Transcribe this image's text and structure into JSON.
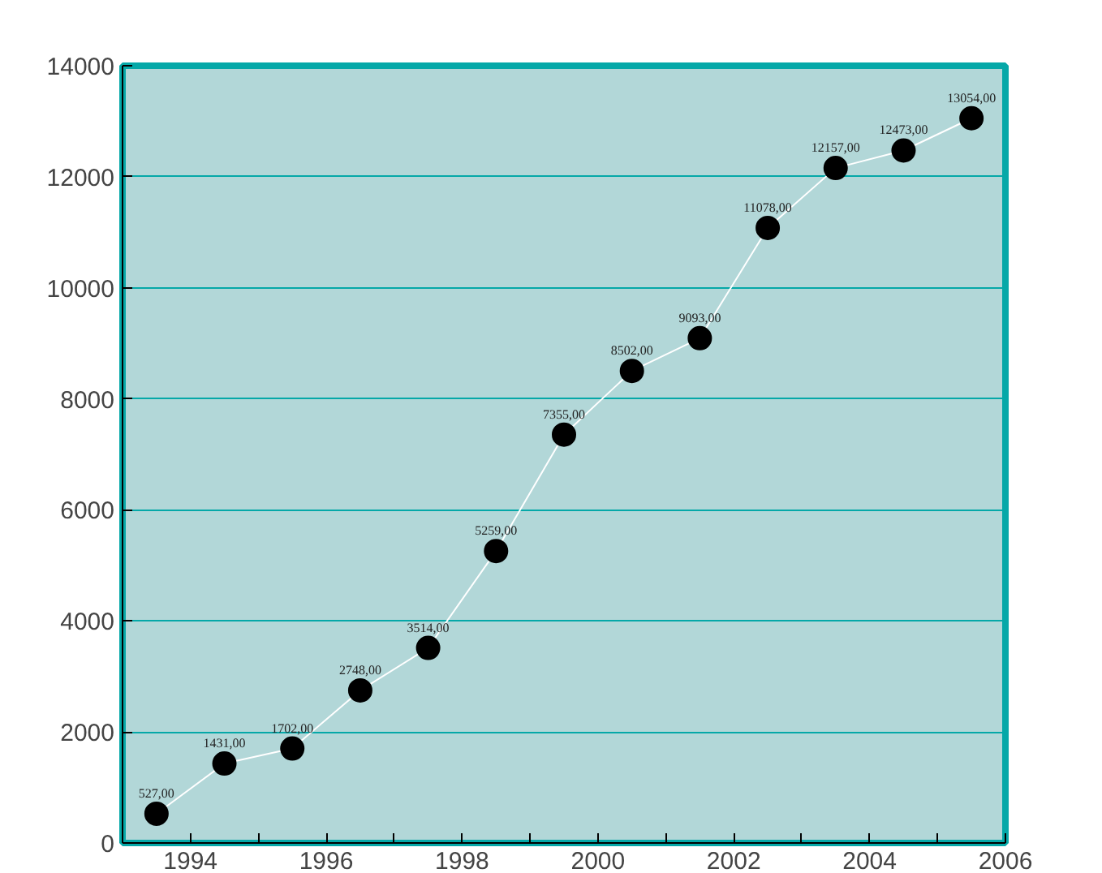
{
  "chart_data": {
    "type": "line",
    "x": [
      1993.5,
      1994.5,
      1995.5,
      1996.5,
      1997.5,
      1998.5,
      1999.5,
      2000.5,
      2001.5,
      2002.5,
      2003.5,
      2004.5,
      2005.5
    ],
    "series": [
      {
        "color": "#000000",
        "values": [
          527,
          1431,
          1702,
          2748,
          3514,
          5259,
          7355,
          8502,
          9093,
          11078,
          12157,
          12473,
          13054
        ],
        "value_labels": [
          "527,00",
          "1431,00",
          "1702,00",
          "2748,00",
          "3514,00",
          "5259,00",
          "7355,00",
          "8502,00",
          "9093,00",
          "11078,00",
          "12157,00",
          "12473,00",
          "13054,00"
        ]
      }
    ],
    "xlim": [
      1993,
      2006
    ],
    "xticks": [
      {
        "value": 1994,
        "label": "1994"
      },
      {
        "value": 1995,
        "label": null
      },
      {
        "value": 1996,
        "label": "1996"
      },
      {
        "value": 1997,
        "label": null
      },
      {
        "value": 1998,
        "label": "1998"
      },
      {
        "value": 1999,
        "label": null
      },
      {
        "value": 2000,
        "label": "2000"
      },
      {
        "value": 2001,
        "label": null
      },
      {
        "value": 2002,
        "label": "2002"
      },
      {
        "value": 2003,
        "label": null
      },
      {
        "value": 2004,
        "label": "2004"
      },
      {
        "value": 2005,
        "label": null
      },
      {
        "value": 2006,
        "label": "2006"
      }
    ],
    "ylim": [
      0,
      14000
    ],
    "yticks": [
      0,
      2000,
      4000,
      6000,
      8000,
      10000,
      12000,
      14000
    ],
    "grid": "y",
    "marker": "circle",
    "line_style": "solid"
  }
}
